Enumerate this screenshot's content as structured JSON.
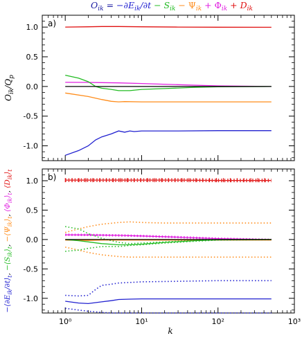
{
  "header": {
    "title_parts": [
      {
        "text": "O",
        "style": "italic",
        "color": "#1a1aa0"
      },
      {
        "text": "ik",
        "style": "italic-sub",
        "color": "#1a1aa0"
      },
      {
        "text": " = ",
        "style": "normal",
        "color": "#1a1aa0"
      },
      {
        "text": "−∂E",
        "style": "italic",
        "color": "#2020d0"
      },
      {
        "text": "ik",
        "style": "italic-sub",
        "color": "#2020d0"
      },
      {
        "text": "/∂t",
        "style": "italic",
        "color": "#2020d0"
      },
      {
        "text": " − S",
        "style": "italic",
        "color": "#22bb22"
      },
      {
        "text": "ik",
        "style": "italic-sub",
        "color": "#22bb22"
      },
      {
        "text": " − Ψ",
        "style": "normal",
        "color": "#ff8c1a"
      },
      {
        "text": "ik",
        "style": "italic-sub",
        "color": "#ff8c1a"
      },
      {
        "text": " + Φ",
        "style": "normal",
        "color": "#e020e0"
      },
      {
        "text": "ik",
        "style": "italic-sub",
        "color": "#e020e0"
      },
      {
        "text": " + D",
        "style": "italic",
        "color": "#e01010"
      },
      {
        "text": "ik",
        "style": "italic-sub",
        "color": "#e01010"
      }
    ]
  },
  "chart_data": [
    {
      "type": "line",
      "panel_label": "a)",
      "ylabel": "O_ik / Q_p",
      "xlabel": "k",
      "xscale": "log",
      "xlim": [
        0.5,
        1000
      ],
      "ylim": [
        -1.25,
        1.2
      ],
      "xticks": [
        1,
        10,
        100,
        1000
      ],
      "xtick_labels": [
        "10⁰",
        "10¹",
        "10²",
        "10³"
      ],
      "yticks": [
        -1.0,
        -0.5,
        0.0,
        0.5,
        1.0
      ],
      "ytick_labels": [
        "-1.0",
        "-0.5",
        "0.0",
        "0.5",
        "1.0"
      ],
      "series": [
        {
          "color": "#e01010",
          "style": "solid",
          "x": [
            1,
            2,
            3,
            5,
            10,
            30,
            100,
            500
          ],
          "y": [
            1.0,
            1.005,
            1.01,
            1.01,
            1.005,
            1.0,
            0.998,
            0.997
          ]
        },
        {
          "color": "#e020e0",
          "style": "solid",
          "x": [
            1,
            2,
            3,
            5,
            10,
            30,
            100,
            500
          ],
          "y": [
            0.07,
            0.068,
            0.065,
            0.06,
            0.05,
            0.03,
            0.01,
            0.0
          ]
        },
        {
          "color": "#22bb22",
          "style": "solid",
          "x": [
            1,
            1.5,
            2,
            2.5,
            3,
            4,
            5,
            7,
            10,
            20,
            50,
            100,
            500
          ],
          "y": [
            0.19,
            0.14,
            0.08,
            0.0,
            -0.03,
            -0.05,
            -0.07,
            -0.07,
            -0.05,
            -0.035,
            -0.015,
            -0.005,
            0.0
          ]
        },
        {
          "color": "#000000",
          "style": "solid",
          "x": [
            1,
            2,
            3,
            5,
            10,
            30,
            100,
            500
          ],
          "y": [
            0.0,
            0.0,
            0.0,
            0.0,
            0.0,
            0.0,
            0.0,
            0.0
          ]
        },
        {
          "color": "#ff8c1a",
          "style": "solid",
          "x": [
            1,
            2,
            3,
            4,
            5,
            6,
            10,
            30,
            100,
            500
          ],
          "y": [
            -0.11,
            -0.17,
            -0.22,
            -0.25,
            -0.26,
            -0.255,
            -0.26,
            -0.26,
            -0.26,
            -0.26
          ]
        },
        {
          "color": "#2020d0",
          "style": "solid",
          "x": [
            1,
            1.5,
            2,
            2.5,
            3,
            4,
            5,
            6,
            7,
            8,
            10,
            30,
            100,
            500
          ],
          "y": [
            -1.16,
            -1.08,
            -1.0,
            -0.9,
            -0.85,
            -0.8,
            -0.75,
            -0.77,
            -0.75,
            -0.76,
            -0.75,
            -0.75,
            -0.745,
            -0.745
          ]
        }
      ]
    },
    {
      "type": "line",
      "panel_label": "b)",
      "ylabel": "−⟨∂E_ik/∂t⟩_t, −⟨S_ik⟩_t, −⟨Ψ_ik⟩_t, ⟨Φ_ik⟩_t, ⟨D_ik⟩_t",
      "xlabel": "k",
      "xscale": "log",
      "xlim": [
        0.5,
        1000
      ],
      "ylim": [
        -1.25,
        1.2
      ],
      "xticks": [
        1,
        10,
        100,
        1000
      ],
      "xtick_labels": [
        "10⁰",
        "10¹",
        "10²",
        "10³"
      ],
      "yticks": [
        -1.0,
        -0.5,
        0.0,
        0.5,
        1.0
      ],
      "ytick_labels": [
        "-1.0",
        "-0.5",
        "0.0",
        "0.5",
        "1.0"
      ],
      "series": [
        {
          "color": "#e01010",
          "style": "solid",
          "x": [
            1,
            2,
            3,
            5,
            10,
            30,
            100,
            500
          ],
          "y": [
            1.01,
            1.01,
            1.01,
            1.01,
            1.01,
            1.01,
            1.005,
            1.005
          ]
        },
        {
          "color": "#e01010",
          "style": "dotted",
          "x": [
            1,
            2,
            3,
            5,
            10,
            30,
            100,
            500
          ],
          "y": [
            1.03,
            1.03,
            1.03,
            1.03,
            1.03,
            1.03,
            1.025,
            1.025
          ]
        },
        {
          "color": "#e01010",
          "style": "dotted",
          "x": [
            1,
            2,
            3,
            5,
            10,
            30,
            100,
            500
          ],
          "y": [
            0.99,
            0.99,
            0.99,
            0.99,
            0.99,
            0.99,
            0.985,
            0.985
          ]
        },
        {
          "color": "#e020e0",
          "style": "solid",
          "x": [
            1,
            2,
            3,
            5,
            10,
            30,
            100,
            500
          ],
          "y": [
            0.08,
            0.078,
            0.075,
            0.07,
            0.06,
            0.04,
            0.015,
            0.0
          ]
        },
        {
          "color": "#e020e0",
          "style": "dotted",
          "x": [
            1,
            2,
            3,
            5,
            10,
            30,
            100,
            500
          ],
          "y": [
            0.09,
            0.088,
            0.085,
            0.08,
            0.07,
            0.05,
            0.025,
            0.005
          ]
        },
        {
          "color": "#e020e0",
          "style": "dotted",
          "x": [
            1,
            2,
            3,
            5,
            10,
            30,
            100,
            500
          ],
          "y": [
            0.07,
            0.068,
            0.065,
            0.06,
            0.05,
            0.03,
            0.005,
            -0.005
          ]
        },
        {
          "color": "#ff8c1a",
          "style": "solid",
          "x": [
            1,
            2,
            3,
            5,
            10,
            30,
            100,
            500
          ],
          "y": [
            -0.01,
            -0.015,
            -0.01,
            -0.01,
            -0.01,
            -0.01,
            -0.01,
            -0.01
          ]
        },
        {
          "color": "#ff8c1a",
          "style": "dotted",
          "x": [
            1,
            1.5,
            2,
            3,
            5,
            7,
            10,
            20,
            50,
            100,
            500
          ],
          "y": [
            0.12,
            0.18,
            0.22,
            0.26,
            0.29,
            0.3,
            0.29,
            0.28,
            0.28,
            0.28,
            0.28
          ]
        },
        {
          "color": "#ff8c1a",
          "style": "dotted",
          "x": [
            1,
            1.5,
            2,
            3,
            5,
            7,
            10,
            20,
            50,
            100,
            500
          ],
          "y": [
            -0.13,
            -0.18,
            -0.22,
            -0.26,
            -0.29,
            -0.3,
            -0.3,
            -0.3,
            -0.3,
            -0.3,
            -0.3
          ]
        },
        {
          "color": "#22bb22",
          "style": "solid",
          "x": [
            1,
            1.5,
            2,
            3,
            5,
            7,
            10,
            20,
            50,
            100,
            500
          ],
          "y": [
            0.0,
            -0.02,
            -0.04,
            -0.07,
            -0.09,
            -0.09,
            -0.08,
            -0.05,
            -0.02,
            -0.005,
            0.0
          ]
        },
        {
          "color": "#22bb22",
          "style": "dotted",
          "x": [
            1,
            1.5,
            2,
            3,
            5,
            7,
            10,
            20,
            50,
            100,
            500
          ],
          "y": [
            0.22,
            0.18,
            0.1,
            0.02,
            -0.05,
            -0.07,
            -0.06,
            -0.04,
            -0.015,
            -0.005,
            0.0
          ]
        },
        {
          "color": "#22bb22",
          "style": "dotted",
          "x": [
            1,
            1.5,
            2,
            3,
            5,
            7,
            10,
            20,
            50,
            100,
            500
          ],
          "y": [
            -0.2,
            -0.18,
            -0.15,
            -0.12,
            -0.12,
            -0.1,
            -0.09,
            -0.06,
            -0.03,
            -0.01,
            0.0
          ]
        },
        {
          "color": "#000000",
          "style": "solid",
          "x": [
            1,
            2,
            3,
            5,
            10,
            30,
            100,
            500
          ],
          "y": [
            0.0,
            0.0,
            0.0,
            0.0,
            0.0,
            0.0,
            0.0,
            0.0
          ]
        },
        {
          "color": "#2020d0",
          "style": "solid",
          "x": [
            1,
            1.5,
            2,
            3,
            4,
            5,
            7,
            10,
            30,
            100,
            500
          ],
          "y": [
            -1.05,
            -1.08,
            -1.09,
            -1.06,
            -1.04,
            -1.02,
            -1.015,
            -1.01,
            -1.01,
            -1.01,
            -1.01
          ]
        },
        {
          "color": "#2020d0",
          "style": "dotted",
          "x": [
            1,
            1.5,
            2,
            2.5,
            3,
            4,
            5,
            7,
            10,
            30,
            100,
            500
          ],
          "y": [
            -0.95,
            -0.96,
            -0.95,
            -0.85,
            -0.78,
            -0.76,
            -0.74,
            -0.73,
            -0.72,
            -0.71,
            -0.7,
            -0.7
          ]
        },
        {
          "color": "#2020d0",
          "style": "dotted",
          "x": [
            1,
            1.5,
            2,
            2.5,
            3,
            4,
            5,
            7,
            10,
            30,
            100,
            500
          ],
          "y": [
            -1.17,
            -1.2,
            -1.22,
            -1.23,
            -1.24,
            -1.25,
            -1.25,
            -1.25,
            -1.25,
            -1.25,
            -1.25,
            -1.25
          ]
        }
      ]
    }
  ]
}
